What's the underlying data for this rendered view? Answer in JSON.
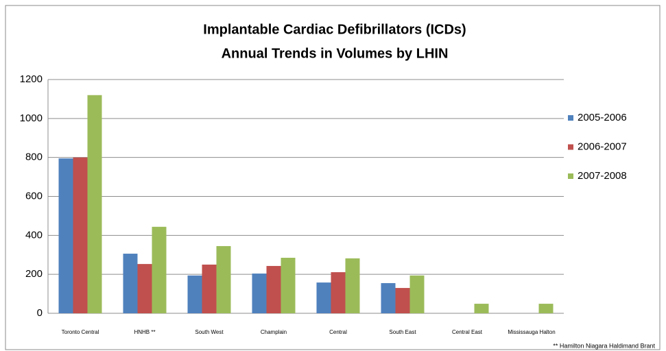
{
  "chart_data": {
    "type": "bar",
    "title": [
      "Implantable Cardiac Defibrillators (ICDs)",
      "Annual Trends in Volumes by LHIN"
    ],
    "categories": [
      "Toronto Central",
      "HNHB **",
      "South West",
      "Champlain",
      "Central",
      "South East",
      "Central East",
      "Mississauga Halton"
    ],
    "series": [
      {
        "name": "2005-2006",
        "color": "#4f81bd",
        "values": [
          795,
          306,
          194,
          204,
          158,
          155,
          0,
          0
        ]
      },
      {
        "name": "2006-2007",
        "color": "#c0504d",
        "values": [
          800,
          253,
          250,
          243,
          211,
          130,
          0,
          0
        ]
      },
      {
        "name": "2007-2008",
        "color": "#9bbb59",
        "values": [
          1120,
          444,
          345,
          285,
          282,
          194,
          49,
          49
        ]
      }
    ],
    "ylim": [
      0,
      1200
    ],
    "yticks": [
      0,
      200,
      400,
      600,
      800,
      1000,
      1200
    ],
    "grid": true,
    "legend": "right",
    "annotation": "** Hamilton Niagara Haldimand Brant"
  }
}
